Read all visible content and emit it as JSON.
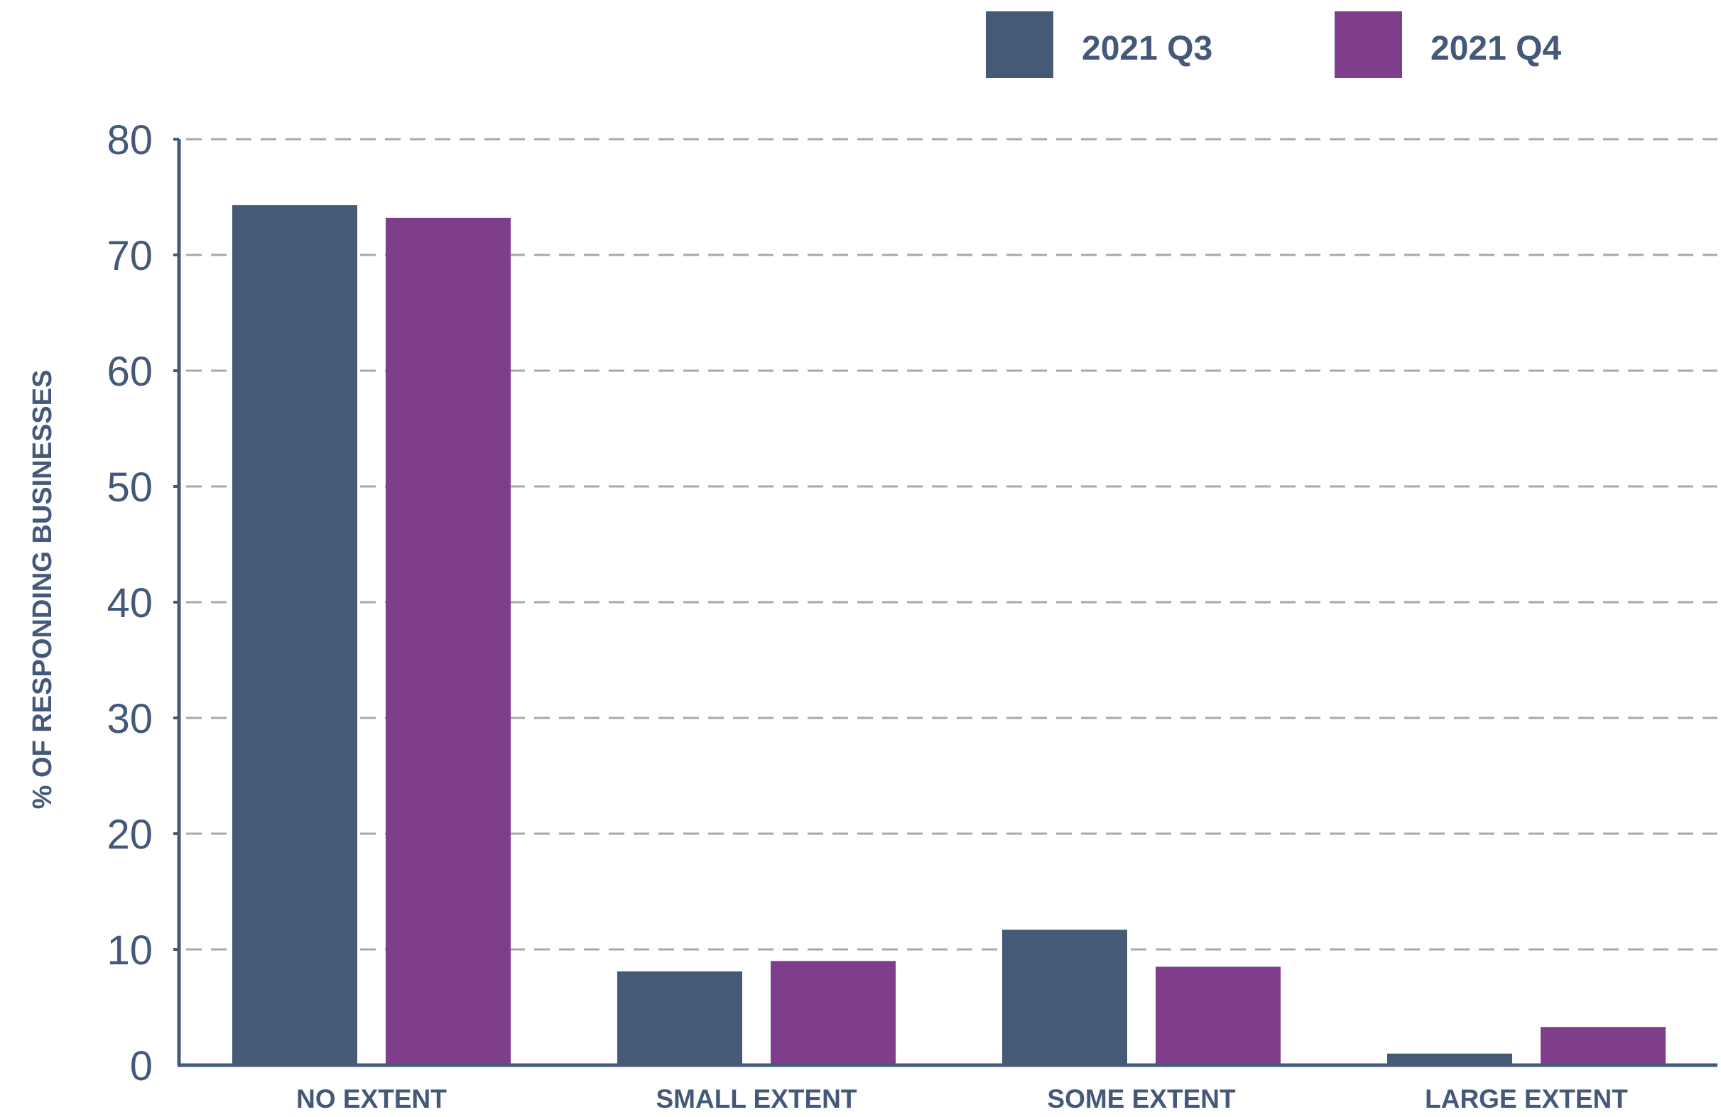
{
  "chart_data": {
    "type": "bar",
    "title": "",
    "xlabel": "",
    "ylabel": "% OF RESPONDING BUSINESSES",
    "categories": [
      "NO EXTENT",
      "SMALL EXTENT",
      "SOME EXTENT",
      "LARGE EXTENT"
    ],
    "series": [
      {
        "name": "2021 Q3",
        "color": "#445a76",
        "values": [
          74.3,
          8.1,
          11.7,
          1.0
        ]
      },
      {
        "name": "2021 Q4",
        "color": "#7f3e8c",
        "values": [
          73.2,
          9.0,
          8.5,
          3.3
        ]
      }
    ],
    "ylim": [
      0,
      80
    ],
    "yticks": [
      0,
      10,
      20,
      30,
      40,
      50,
      60,
      70,
      80
    ],
    "grid": true,
    "legend_position": "top-right"
  }
}
